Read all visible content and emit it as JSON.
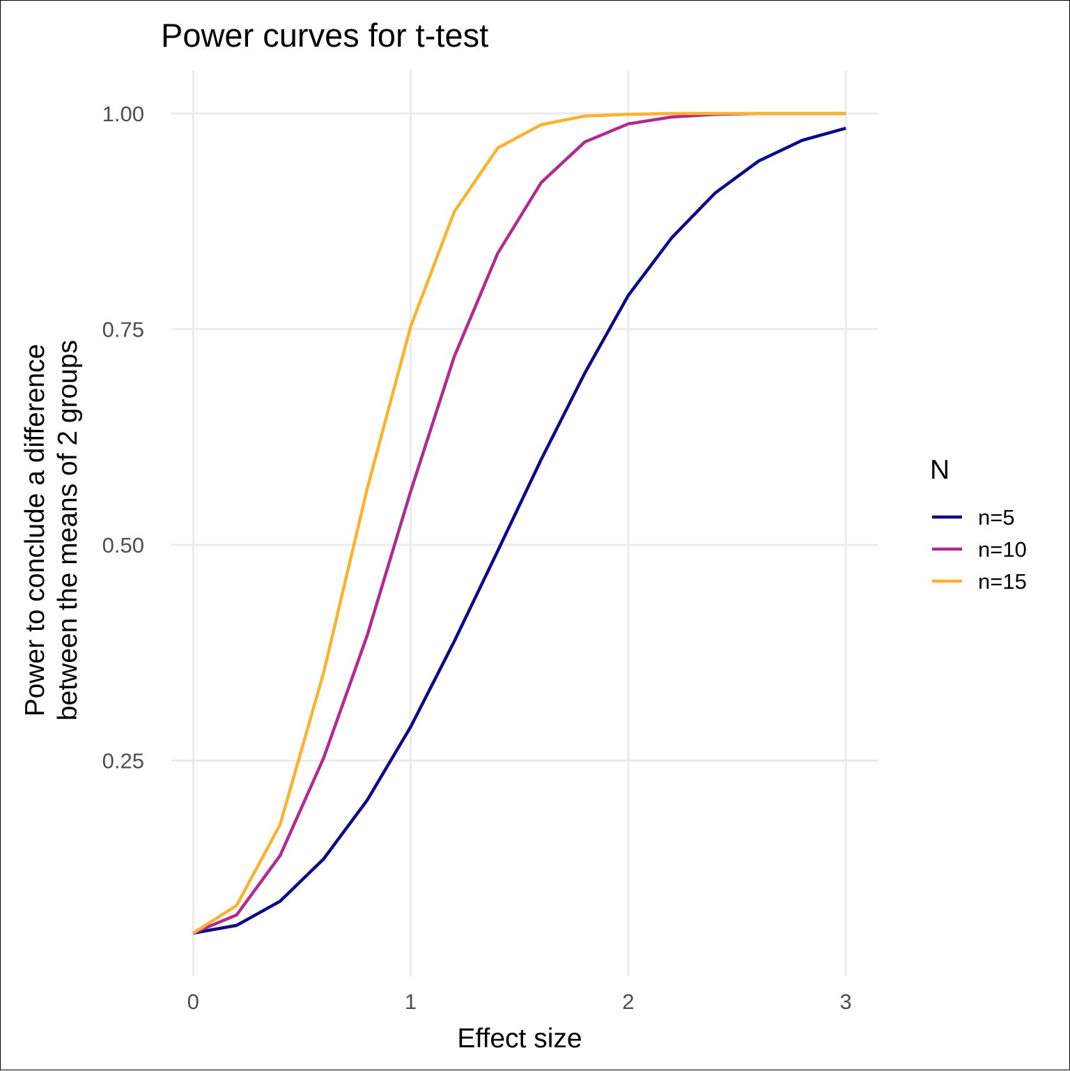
{
  "chart_data": {
    "type": "line",
    "title": "Power curves for t-test",
    "xlabel": "Effect size",
    "ylabel_lines": [
      "Power to conclude a difference",
      "between the means of 2 groups"
    ],
    "xlim": [
      -0.1,
      3.15
    ],
    "ylim": [
      0.0,
      1.05
    ],
    "x_ticks": [
      0,
      1,
      2,
      3
    ],
    "x_tick_labels": [
      "0",
      "1",
      "2",
      "3"
    ],
    "y_ticks": [
      0.25,
      0.5,
      0.75,
      1.0
    ],
    "y_tick_labels": [
      "0.25",
      "0.50",
      "0.75",
      "1.00"
    ],
    "grid": true,
    "legend": {
      "title": "N",
      "position": "right"
    },
    "x": [
      0,
      0.2,
      0.4,
      0.6,
      0.8,
      1.0,
      1.2,
      1.4,
      1.6,
      1.8,
      2.0,
      2.2,
      2.4,
      2.6,
      2.8,
      3.0
    ],
    "series": [
      {
        "name": "n=5",
        "color": "#0d0887",
        "values": [
          0.05,
          0.059,
          0.087,
          0.136,
          0.204,
          0.289,
          0.388,
          0.493,
          0.599,
          0.699,
          0.789,
          0.856,
          0.908,
          0.945,
          0.969,
          0.983
        ]
      },
      {
        "name": "n=10",
        "color": "#b12a90",
        "values": [
          0.05,
          0.071,
          0.14,
          0.253,
          0.395,
          0.562,
          0.718,
          0.838,
          0.92,
          0.967,
          0.988,
          0.996,
          0.999,
          1.0,
          1.0,
          1.0
        ]
      },
      {
        "name": "n=15",
        "color": "#fbb32f",
        "values": [
          0.05,
          0.082,
          0.176,
          0.352,
          0.565,
          0.753,
          0.886,
          0.96,
          0.987,
          0.997,
          0.999,
          1.0,
          1.0,
          1.0,
          1.0,
          1.0
        ]
      }
    ]
  }
}
